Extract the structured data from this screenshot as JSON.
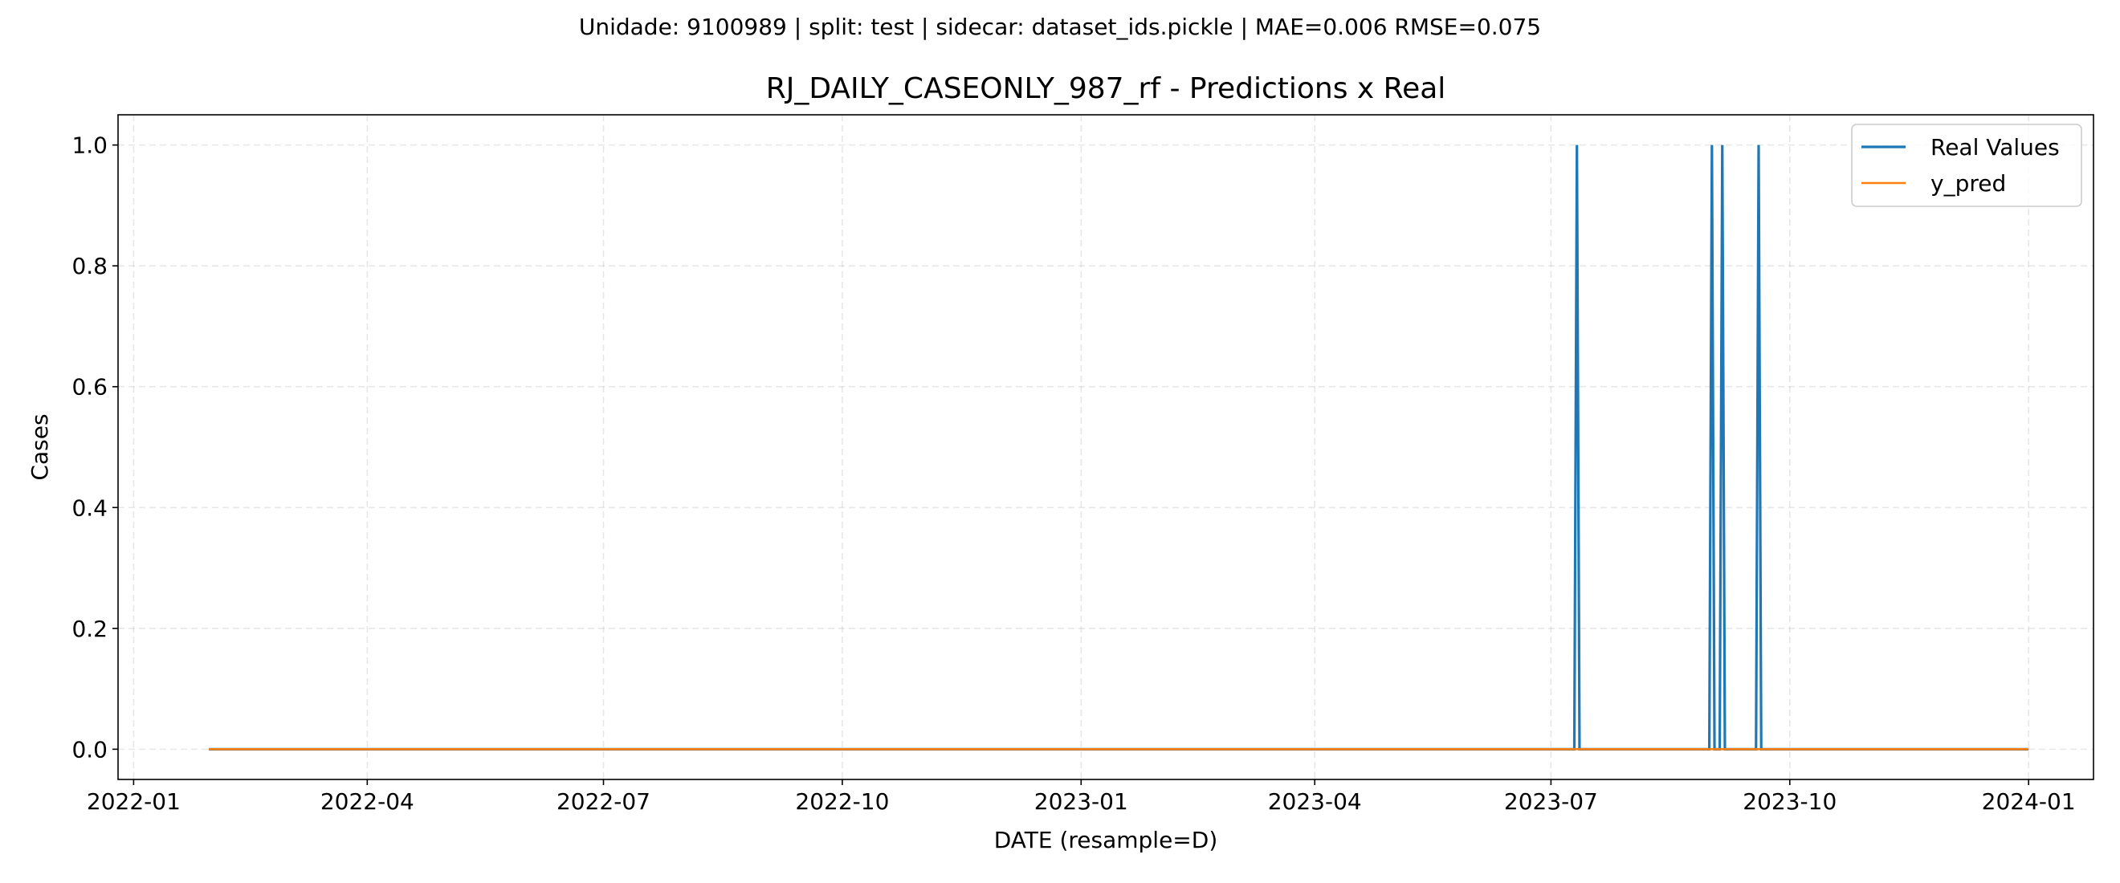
{
  "figure": {
    "suptitle": "Unidade: 9100989 | split: test | sidecar: dataset_ids.pickle | MAE=0.006  RMSE=0.075"
  },
  "chart_data": {
    "type": "line",
    "title": "RJ_DAILY_CASEONLY_987_rf - Predictions x Real",
    "xlabel": "DATE (resample=D)",
    "ylabel": "Cases",
    "x_type": "date",
    "xlim": [
      "2021-12-26",
      "2024-01-26"
    ],
    "ylim": [
      -0.05,
      1.05
    ],
    "x_ticks": [
      "2022-01-01",
      "2022-04-01",
      "2022-07-01",
      "2022-10-01",
      "2023-01-01",
      "2023-04-01",
      "2023-07-01",
      "2023-10-01",
      "2024-01-01"
    ],
    "x_tick_labels": [
      "2022-01",
      "2022-04",
      "2022-07",
      "2022-10",
      "2023-01",
      "2023-04",
      "2023-07",
      "2023-10",
      "2024-01"
    ],
    "y_ticks": [
      0.0,
      0.2,
      0.4,
      0.6,
      0.8,
      1.0
    ],
    "y_tick_labels": [
      "0.0",
      "0.2",
      "0.4",
      "0.6",
      "0.8",
      "1.0"
    ],
    "grid": true,
    "legend": {
      "position": "top-right"
    },
    "series": [
      {
        "name": "Real Values",
        "color": "#1f77b4",
        "points": [
          [
            "2022-01-30",
            0
          ],
          [
            "2023-07-10",
            0
          ],
          [
            "2023-07-11",
            1
          ],
          [
            "2023-07-12",
            0
          ],
          [
            "2023-08-31",
            0
          ],
          [
            "2023-09-01",
            1
          ],
          [
            "2023-09-02",
            0
          ],
          [
            "2023-09-04",
            0
          ],
          [
            "2023-09-05",
            1
          ],
          [
            "2023-09-06",
            0
          ],
          [
            "2023-09-18",
            0
          ],
          [
            "2023-09-19",
            1
          ],
          [
            "2023-09-20",
            0
          ],
          [
            "2024-01-01",
            0
          ]
        ]
      },
      {
        "name": "y_pred",
        "color": "#ff7f0e",
        "points": [
          [
            "2022-01-30",
            0
          ],
          [
            "2024-01-01",
            0
          ]
        ]
      }
    ]
  }
}
